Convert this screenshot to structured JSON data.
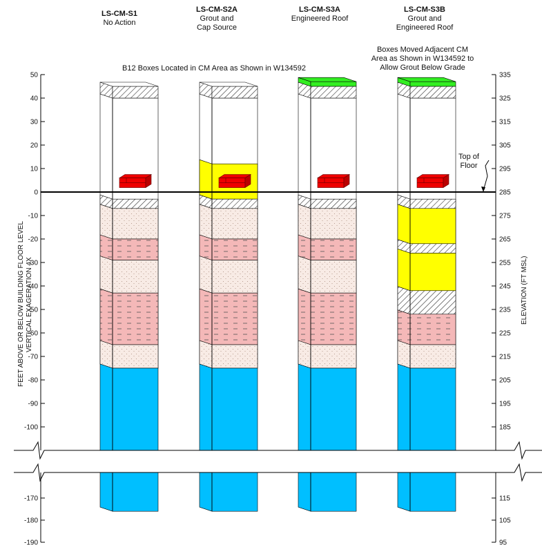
{
  "columns": [
    {
      "id": "LS-CM-S1",
      "code": "LS-CM-S1",
      "desc": [
        "No Action"
      ],
      "top": "cap",
      "cell": "white",
      "layers": "base"
    },
    {
      "id": "LS-CM-S2A",
      "code": "LS-CM-S2A",
      "desc": [
        "Grout and",
        "Cap Source"
      ],
      "top": "cap",
      "cell": "yellow",
      "layers": "base"
    },
    {
      "id": "LS-CM-S3A",
      "code": "LS-CM-S3A",
      "desc": [
        "Engineered Roof"
      ],
      "top": "green",
      "cell": "white",
      "layers": "base"
    },
    {
      "id": "LS-CM-S3B",
      "code": "LS-CM-S3B",
      "desc": [
        "Grout and",
        "Engineered Roof"
      ],
      "top": "green",
      "cell": "white",
      "layers": "grout"
    }
  ],
  "notes": {
    "b12": "B12 Boxes Located in CM Area as Shown in W134592",
    "moved": [
      "Boxes Moved Adjacent CM",
      "Area as Shown in W134592 to",
      "Allow Grout Below Grade"
    ],
    "top_of_floor": [
      "Top of",
      "Floor"
    ]
  },
  "axes": {
    "left_title": [
      "FEET ABOVE OR BELOW BUILDING FLOOR LEVEL",
      "VERTICAL EXAGERATION 4X"
    ],
    "right_title": "ELEVATION (FT MSL)",
    "left_ticks_upper": [
      50,
      40,
      30,
      20,
      10,
      0,
      -10,
      -20,
      -30,
      -40,
      -50,
      -60,
      -70,
      -80,
      -90,
      -100
    ],
    "left_ticks_lower": [
      -170,
      -180,
      -190
    ],
    "right_ticks_upper": [
      335,
      325,
      315,
      305,
      295,
      285,
      275,
      265,
      255,
      245,
      235,
      225,
      215,
      205,
      195,
      185
    ],
    "right_ticks_lower": [
      115,
      105,
      95
    ],
    "left_labels_upper": [
      "50",
      "40",
      "30",
      "20",
      "10",
      "0",
      "-10",
      "-20",
      "-30",
      "-40",
      "-50",
      "-60",
      "-70",
      "-80",
      "-90",
      "-100"
    ],
    "left_labels_lower": [
      "-170",
      "-180",
      "-190"
    ],
    "right_labels_upper": [
      "335",
      "325",
      "315",
      "305",
      "295",
      "285",
      "275",
      "265",
      "255",
      "245",
      "235",
      "225",
      "215",
      "205",
      "195",
      "185"
    ],
    "right_labels_lower": [
      "115",
      "105",
      "95"
    ]
  },
  "colors": {
    "groundwater": "#00bfff",
    "grout": "#ffff00",
    "roof": "#33ee22",
    "box": "#ee0000",
    "clay": "#f4b8b8",
    "sand": "#f8ebe5"
  }
}
